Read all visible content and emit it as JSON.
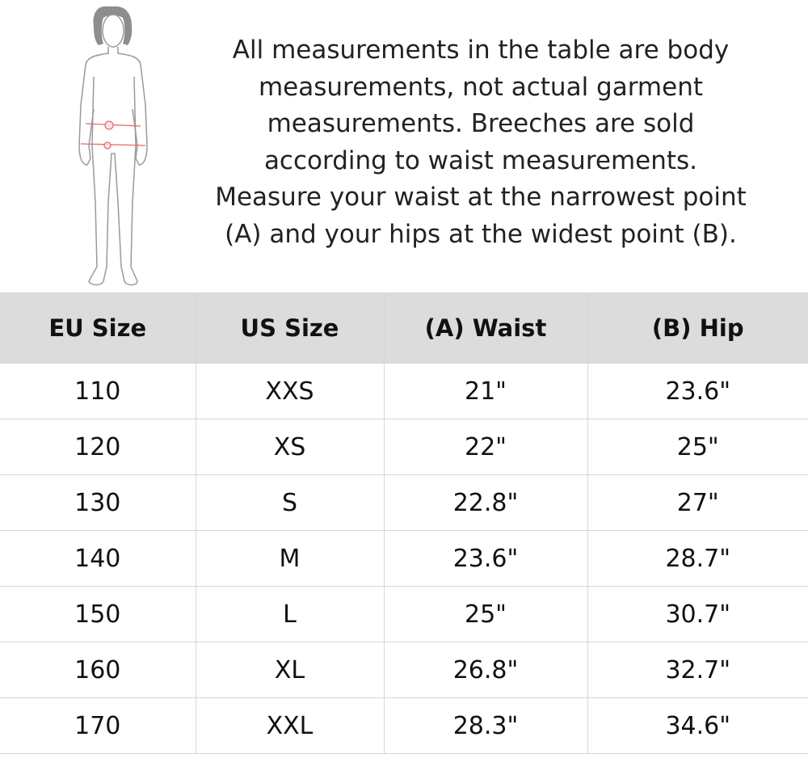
{
  "figure": {
    "icon": "child-body-measurement-figure",
    "marker_color": "#e56b6b",
    "markers": [
      "A",
      "B"
    ]
  },
  "intro_lines": [
    "All measurements in the table are body",
    "measurements, not actual garment",
    "measurements. Breeches are sold",
    "according to waist measurements.",
    "Measure your waist at the narrowest point",
    "(A) and your hips at the widest point (B)."
  ],
  "table": {
    "header_bg": "#dcdcdc",
    "columns": [
      "EU Size",
      "US Size",
      "(A) Waist",
      "(B) Hip"
    ],
    "rows": [
      [
        "110",
        "XXS",
        "21\"",
        "23.6\""
      ],
      [
        "120",
        "XS",
        "22\"",
        "25\""
      ],
      [
        "130",
        "S",
        "22.8\"",
        "27\""
      ],
      [
        "140",
        "M",
        "23.6\"",
        "28.7\""
      ],
      [
        "150",
        "L",
        "25\"",
        "30.7\""
      ],
      [
        "160",
        "XL",
        "26.8\"",
        "32.7\""
      ],
      [
        "170",
        "XXL",
        "28.3\"",
        "34.6\""
      ]
    ]
  }
}
